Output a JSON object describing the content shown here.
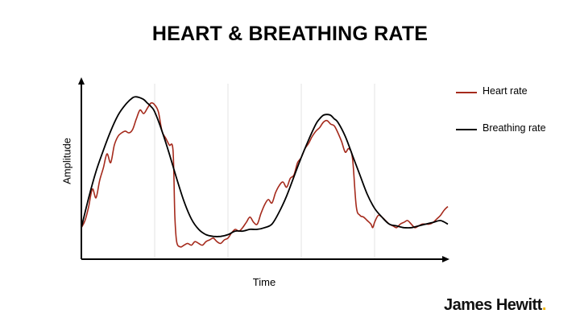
{
  "chart_data": {
    "type": "line",
    "title": "HEART & BREATHING RATE",
    "xlabel": "Time",
    "ylabel": "Amplitude",
    "xlim": [
      0,
      100
    ],
    "ylim": [
      0,
      100
    ],
    "grid": {
      "vertical": true,
      "horizontal": false
    },
    "legend": "right",
    "series": [
      {
        "name": "Heart rate",
        "color": "#a52a1c",
        "x": [
          0,
          1,
          2,
          3,
          4,
          5,
          6,
          7,
          8,
          9,
          10,
          11,
          12,
          13,
          14,
          15,
          16,
          17,
          18,
          19,
          20,
          21,
          22,
          23,
          24,
          25,
          25.5,
          26,
          27,
          28,
          29,
          30,
          31,
          32,
          33,
          34,
          35,
          36,
          37,
          38,
          39,
          40,
          41,
          42,
          43,
          44,
          45,
          46,
          47,
          48,
          49,
          50,
          51,
          52,
          53,
          54,
          55,
          56,
          57,
          58,
          59,
          60,
          61,
          62,
          63,
          64,
          65,
          66,
          67,
          68,
          69,
          70,
          71,
          72,
          73,
          74,
          75,
          76,
          77,
          78,
          79,
          79.5,
          80,
          81,
          82,
          83,
          84,
          85,
          86,
          87,
          88,
          89,
          90,
          91,
          92,
          93,
          94,
          95,
          96,
          97,
          98,
          99,
          100
        ],
        "y": [
          18,
          22,
          30,
          40,
          35,
          45,
          52,
          60,
          55,
          65,
          70,
          72,
          73,
          72,
          74,
          80,
          85,
          83,
          86,
          89,
          88,
          84,
          73,
          69,
          65,
          62,
          25,
          10,
          7,
          8,
          9,
          8,
          10,
          9,
          8,
          10,
          11,
          12,
          10,
          9,
          11,
          12,
          15,
          17,
          16,
          18,
          21,
          24,
          21,
          20,
          26,
          31,
          34,
          32,
          38,
          42,
          44,
          41,
          46,
          48,
          55,
          58,
          63,
          66,
          70,
          73,
          75,
          78,
          79,
          77,
          76,
          72,
          67,
          61,
          63,
          57,
          30,
          25,
          24,
          22,
          20,
          18,
          21,
          25,
          24,
          22,
          20,
          19,
          18,
          20,
          21,
          22,
          20,
          18,
          19,
          20,
          20,
          20,
          21,
          23,
          25,
          28,
          30
        ]
      },
      {
        "name": "Breathing rate",
        "color": "#000000",
        "x": [
          0,
          2,
          4,
          6,
          8,
          10,
          12,
          14,
          15,
          16,
          17,
          18,
          19,
          20,
          22,
          24,
          26,
          28,
          30,
          32,
          34,
          36,
          38,
          40,
          42,
          44,
          46,
          48,
          50,
          52,
          54,
          56,
          58,
          60,
          62,
          64,
          65,
          66,
          67,
          68,
          69,
          70,
          72,
          74,
          76,
          78,
          80,
          82,
          84,
          86,
          88,
          90,
          92,
          94,
          96,
          98,
          100
        ],
        "y": [
          18,
          35,
          50,
          62,
          73,
          82,
          88,
          92,
          92.5,
          92,
          91,
          89,
          87,
          84,
          73,
          60,
          46,
          33,
          23,
          17,
          14,
          13,
          13,
          14,
          16,
          16,
          17,
          17,
          18,
          20,
          27,
          36,
          47,
          58,
          68,
          77,
          80,
          82,
          82.5,
          82,
          80,
          78,
          70,
          59,
          48,
          37,
          29,
          24,
          20,
          19,
          18,
          18,
          19,
          20,
          21,
          22,
          20
        ]
      }
    ]
  },
  "brand": {
    "name": "James Hewitt",
    "dot": "."
  }
}
